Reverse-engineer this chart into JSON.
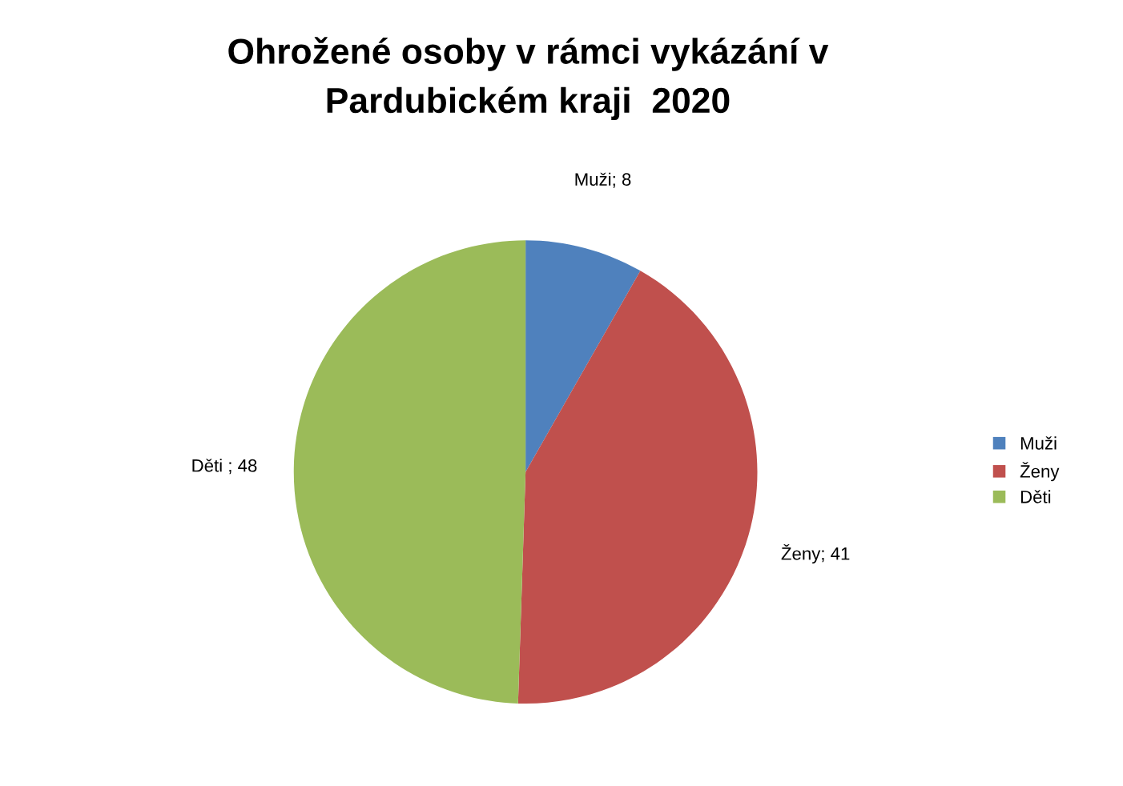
{
  "chart_data": {
    "type": "pie",
    "title": "Ohrožené osoby v rámci vykázání v\nPardubickém kraji  2020",
    "categories": [
      "Muži",
      "Ženy",
      "Děti"
    ],
    "values": [
      8,
      41,
      48
    ],
    "colors": [
      "#4f81bd",
      "#c0504d",
      "#9bbb59"
    ],
    "value_labels": [
      "Muži; 8",
      "Ženy; 41",
      "Děti ; 48"
    ],
    "legend": "right"
  }
}
